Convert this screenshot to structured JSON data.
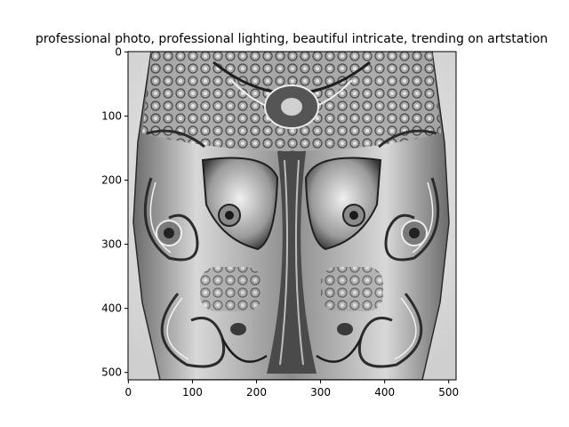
{
  "figure": {
    "title": "professional photo,  professional lighting,  beautiful  intricate,  trending on artstation",
    "image_subject": "ornate-symmetric-grayscale-mask-sculpture",
    "image_size": [
      512,
      512
    ],
    "colors": {
      "axes": "#000000",
      "background": "#ffffff"
    },
    "x_ticks": [
      {
        "value": 0,
        "label": "0"
      },
      {
        "value": 100,
        "label": "100"
      },
      {
        "value": 200,
        "label": "200"
      },
      {
        "value": 300,
        "label": "300"
      },
      {
        "value": 400,
        "label": "400"
      },
      {
        "value": 500,
        "label": "500"
      }
    ],
    "y_ticks": [
      {
        "value": 0,
        "label": "0"
      },
      {
        "value": 100,
        "label": "100"
      },
      {
        "value": 200,
        "label": "200"
      },
      {
        "value": 300,
        "label": "300"
      },
      {
        "value": 400,
        "label": "400"
      },
      {
        "value": 500,
        "label": "500"
      }
    ]
  }
}
